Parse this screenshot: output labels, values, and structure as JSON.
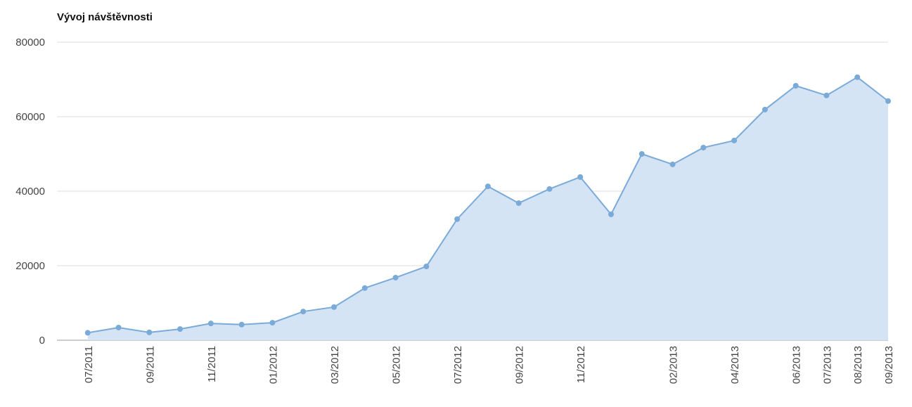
{
  "chart_data": {
    "type": "area",
    "title": "Vývoj návštěvnosti",
    "categories": [
      "07/2011",
      null,
      "09/2011",
      null,
      "11/2011",
      null,
      "01/2012",
      null,
      "03/2012",
      null,
      "05/2012",
      null,
      "07/2012",
      null,
      "09/2012",
      null,
      "11/2012",
      null,
      null,
      "02/2013",
      null,
      "04/2013",
      null,
      "06/2013",
      "07/2013",
      "08/2013",
      "09/2013"
    ],
    "series": [
      {
        "color": "#7aaad8",
        "values": [
          2000,
          3400,
          2100,
          3000,
          4500,
          4200,
          4700,
          7700,
          8900,
          14000,
          16800,
          19800,
          32500,
          41300,
          36800,
          40600,
          43800,
          33800,
          50000,
          47200,
          51700,
          53600,
          61900,
          68300,
          65700,
          70600,
          64200
        ]
      }
    ],
    "ylim": [
      0,
      80000
    ],
    "yticks": [
      0,
      20000,
      40000,
      60000,
      80000
    ],
    "grid": true
  }
}
